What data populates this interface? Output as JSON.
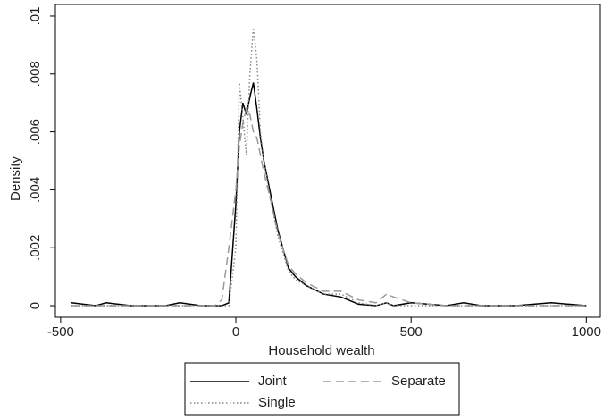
{
  "chart_data": {
    "type": "line",
    "x_label": "Household wealth",
    "y_label": "Density",
    "x": [
      -470,
      -400,
      -370,
      -300,
      -200,
      -160,
      -100,
      -60,
      -40,
      -20,
      0,
      10,
      20,
      30,
      40,
      50,
      60,
      70,
      80,
      100,
      120,
      150,
      170,
      200,
      250,
      300,
      350,
      400,
      430,
      450,
      500,
      600,
      650,
      700,
      800,
      900,
      1000
    ],
    "series": [
      {
        "name": "Joint",
        "color": "#000000",
        "dash": "solid",
        "values": [
          0.0001,
          0,
          0.0001,
          0,
          0,
          0.0001,
          0,
          0,
          0,
          0.0001,
          0.0035,
          0.006,
          0.007,
          0.0066,
          0.0072,
          0.0077,
          0.0068,
          0.0058,
          0.005,
          0.0038,
          0.0026,
          0.0013,
          0.001,
          0.0007,
          0.0004,
          0.0003,
          5e-05,
          0,
          0.0001,
          0,
          0.0001,
          0,
          0.0001,
          0,
          0,
          0.0001,
          0
        ]
      },
      {
        "name": "Separate",
        "color": "#999999",
        "dash": "dashed",
        "values": [
          0,
          0,
          0,
          0,
          0,
          0,
          0,
          0,
          0.0002,
          0.002,
          0.004,
          0.0055,
          0.0063,
          0.0068,
          0.0066,
          0.006,
          0.0058,
          0.0052,
          0.0046,
          0.0036,
          0.0025,
          0.0014,
          0.0011,
          0.0008,
          0.0005,
          0.0005,
          0.0002,
          0.0001,
          0.0004,
          0.0003,
          0.0001,
          0,
          0,
          0,
          0,
          0,
          0
        ]
      },
      {
        "name": "Single",
        "color": "#888888",
        "dash": "dotted",
        "values": [
          0,
          0,
          0,
          0,
          0,
          0,
          0,
          0,
          0,
          0,
          0.002,
          0.0077,
          0.0065,
          0.0052,
          0.008,
          0.0096,
          0.0085,
          0.006,
          0.005,
          0.0036,
          0.0024,
          0.0012,
          0.0009,
          0.0007,
          0.0004,
          0.0004,
          0.0001,
          0,
          0.0001,
          0,
          0,
          0,
          0,
          0,
          0,
          0,
          0
        ]
      }
    ],
    "xlim": [
      -515,
      1040
    ],
    "xticks": [
      -500,
      0,
      500,
      1000
    ],
    "ylim": [
      -0.0004,
      0.0104
    ],
    "yticks": [
      0,
      {
        "value": 0.002,
        "label": ".002"
      },
      {
        "value": 0.004,
        "label": ".004"
      },
      {
        "value": 0.006,
        "label": ".006"
      },
      {
        "value": 0.008,
        "label": ".008"
      },
      {
        "value": 0.01,
        "label": ".01"
      }
    ],
    "grid": false
  }
}
